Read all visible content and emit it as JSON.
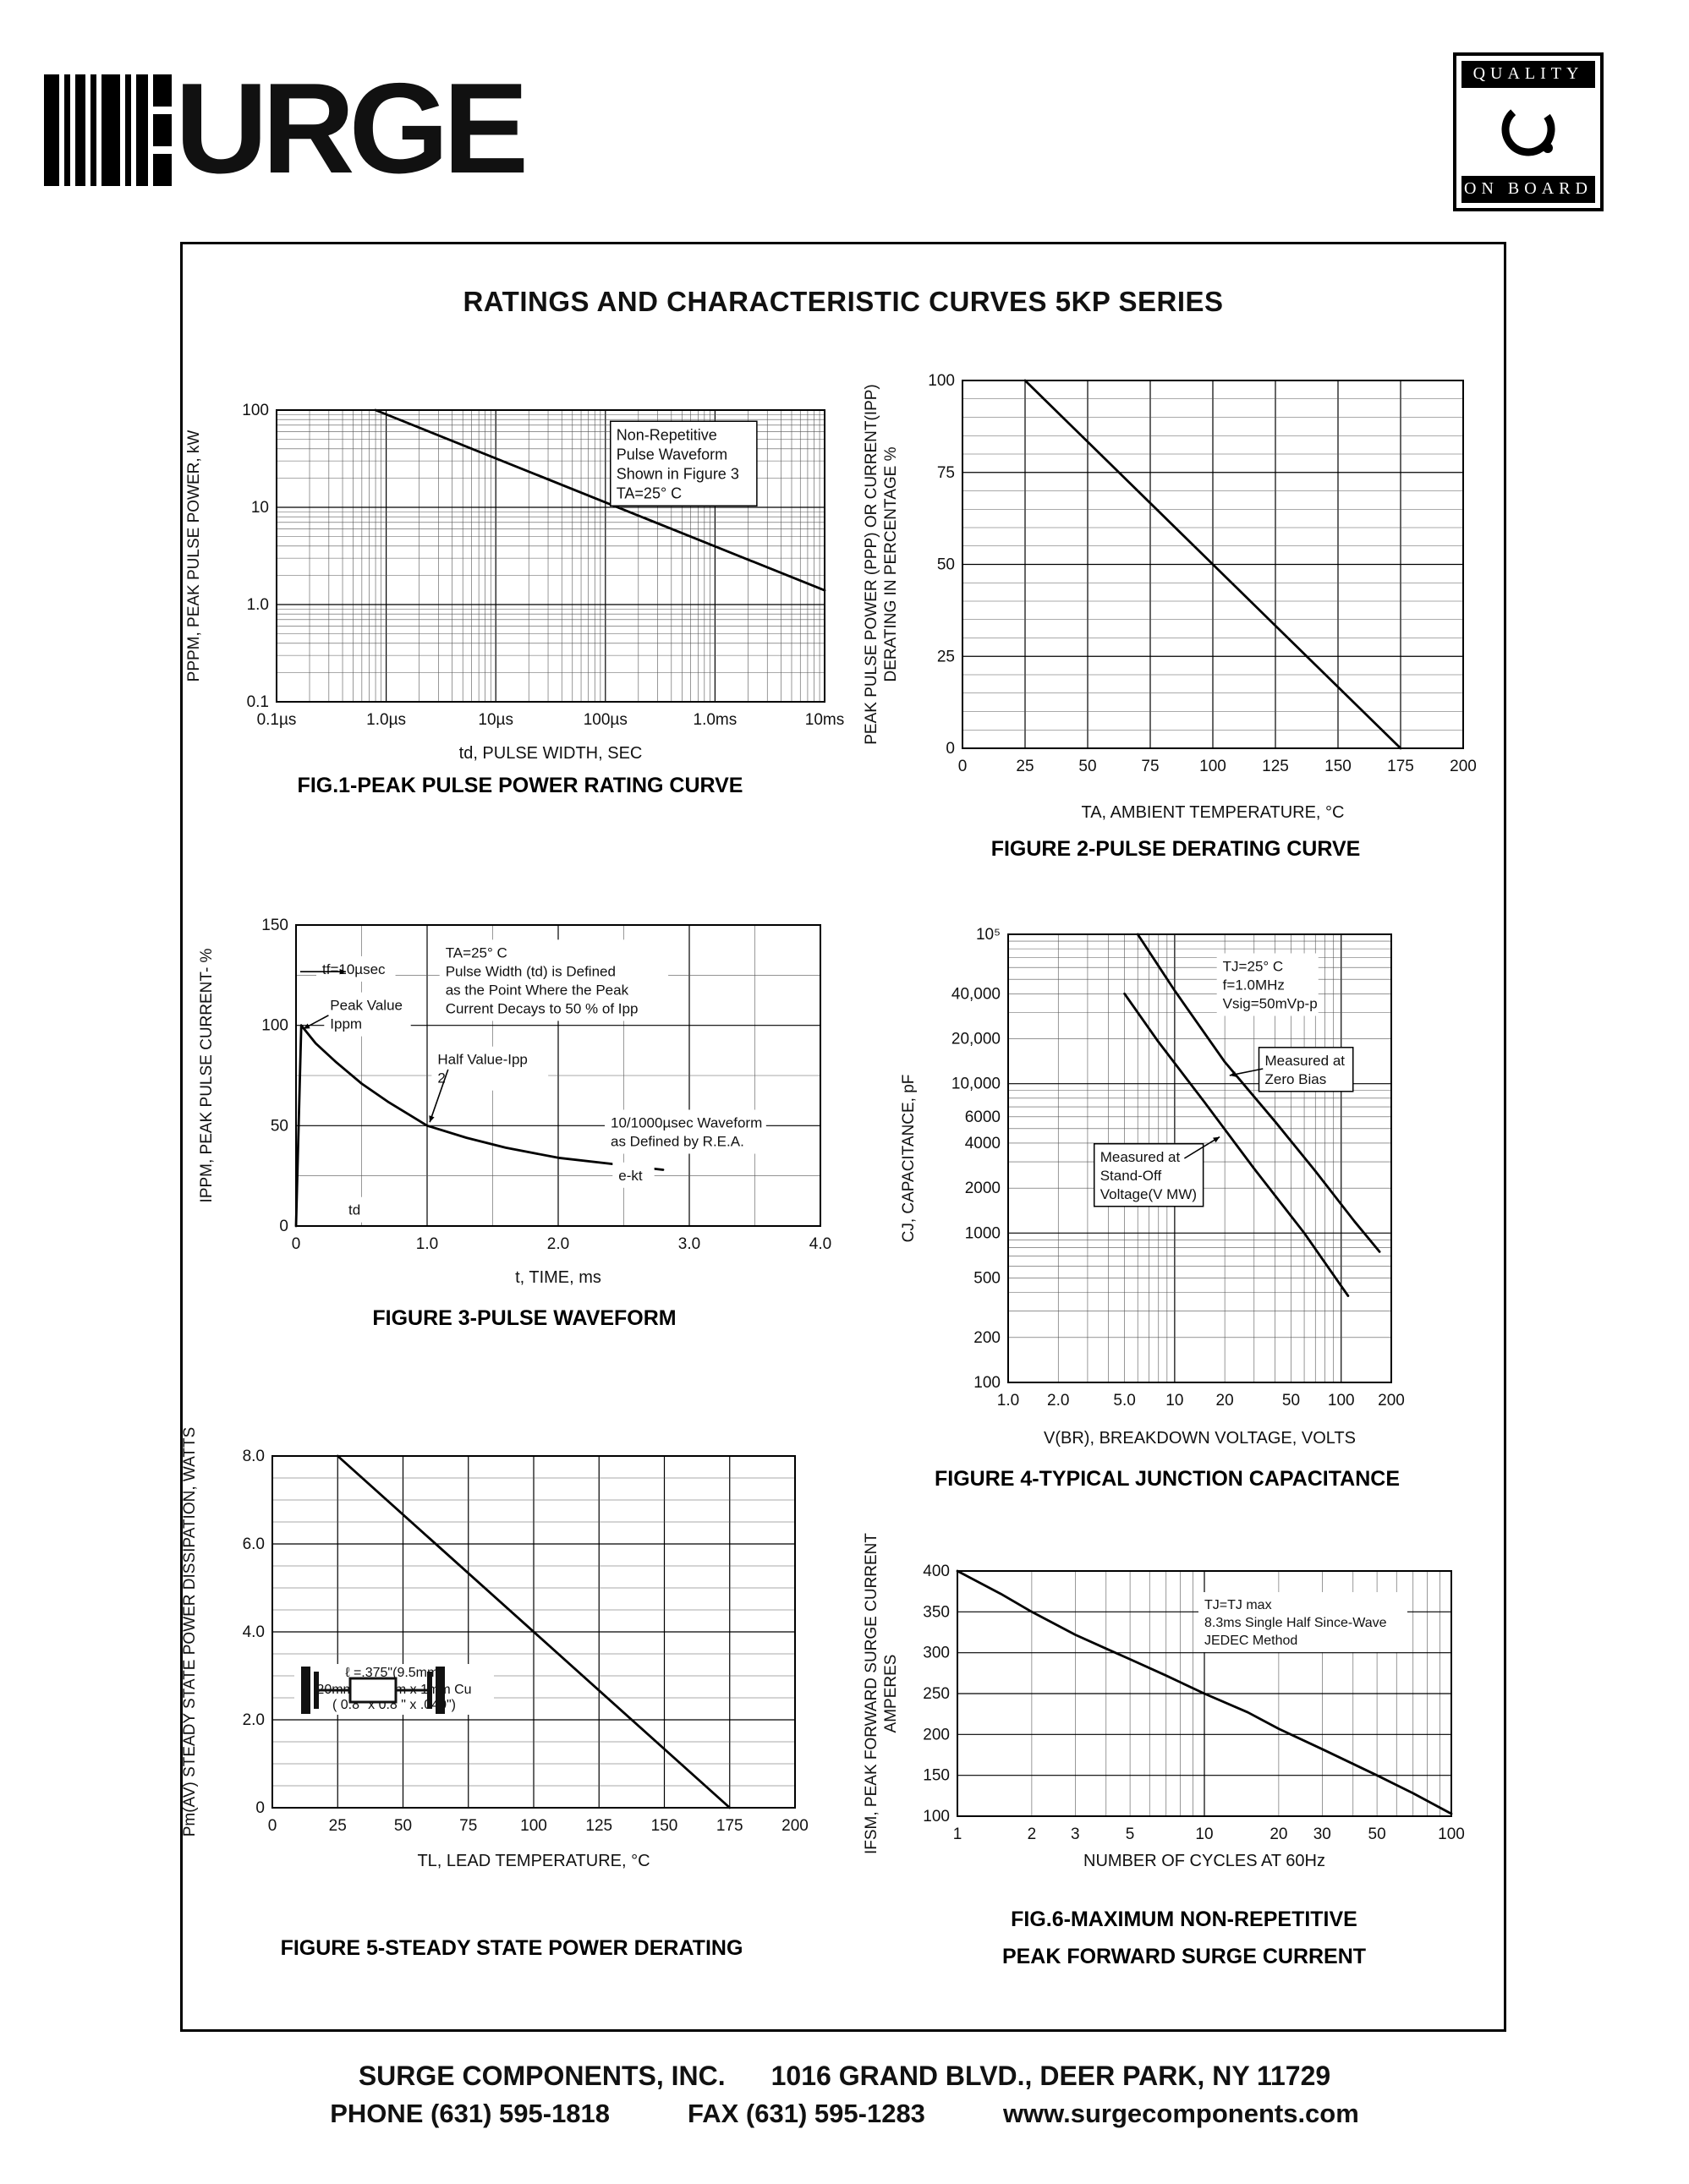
{
  "header": {
    "logo_text": "URGE",
    "badge_top": "QUALITY",
    "badge_bottom": "ON BOARD"
  },
  "panel": {
    "title": "RATINGS AND CHARACTERISTIC CURVES 5KP SERIES"
  },
  "footer": {
    "company": "SURGE COMPONENTS, INC.",
    "address": "1016 GRAND BLVD., DEER PARK, NY  11729",
    "phone": "PHONE (631) 595-1818",
    "fax": "FAX (631) 595-1283",
    "website": "www.surgecomponents.com"
  },
  "chart_data": [
    {
      "id": "fig1",
      "type": "line",
      "caption": "FIG.1-PEAK PULSE POWER RATING CURVE",
      "xlabel": "td, PULSE WIDTH, SEC",
      "ylabel": [
        "PPPM, PEAK PULSE POWER, kW"
      ],
      "margin": {
        "l": 112,
        "r": 40,
        "t": 45,
        "b": 80
      },
      "x": {
        "scale": "log",
        "min": 1e-07,
        "max": 0.01,
        "ticks": [
          {
            "v": 1e-07,
            "label": "0.1µs"
          },
          {
            "v": 1e-06,
            "label": "1.0µs"
          },
          {
            "v": 1e-05,
            "label": "10µs"
          },
          {
            "v": 0.0001,
            "label": "100µs"
          },
          {
            "v": 0.001,
            "label": "1.0ms"
          },
          {
            "v": 0.01,
            "label": "10ms"
          }
        ]
      },
      "y": {
        "scale": "log",
        "min": 0.1,
        "max": 100,
        "ticks": [
          {
            "v": 100,
            "label": "100"
          },
          {
            "v": 10,
            "label": "10"
          },
          {
            "v": 1,
            "label": "1.0"
          },
          {
            "v": 0.1,
            "label": "0.1"
          }
        ]
      },
      "series": [
        {
          "name": "non-repetitive-peak-pulse-power",
          "points": [
            [
              8e-07,
              100
            ],
            [
              0.01,
              1.4
            ]
          ]
        }
      ],
      "annotations": [
        {
          "fx": 0.62,
          "fy": 0.05,
          "fs": 18,
          "boxed": true,
          "lines": [
            "Non-Repetitive",
            "Pulse Waveform",
            "Shown in Figure 3",
            "TA=25° C"
          ]
        }
      ]
    },
    {
      "id": "fig2",
      "type": "line",
      "caption": "FIGURE 2-PULSE DERATING CURVE",
      "xlabel": "TA, AMBIENT  TEMPERATURE, °C",
      "ylabel": [
        "PEAK PULSE POWER (PPP) OR CURRENT(IPP)",
        "DERATING IN PERCENTAGE %"
      ],
      "margin": {
        "l": 118,
        "r": 30,
        "t": 30,
        "b": 95
      },
      "x": {
        "scale": "linear",
        "min": 0,
        "max": 200,
        "minor": 25,
        "ticks": [
          {
            "v": 0,
            "label": "0"
          },
          {
            "v": 25,
            "label": "25"
          },
          {
            "v": 50,
            "label": "50"
          },
          {
            "v": 75,
            "label": "75"
          },
          {
            "v": 100,
            "label": "100"
          },
          {
            "v": 125,
            "label": "125"
          },
          {
            "v": 150,
            "label": "150"
          },
          {
            "v": 175,
            "label": "175"
          },
          {
            "v": 200,
            "label": "200"
          }
        ]
      },
      "y": {
        "scale": "linear",
        "min": 0,
        "max": 100,
        "minor": 5,
        "ticks": [
          {
            "v": 0,
            "label": "0"
          },
          {
            "v": 25,
            "label": "25"
          },
          {
            "v": 50,
            "label": "50"
          },
          {
            "v": 75,
            "label": "75"
          },
          {
            "v": 100,
            "label": "100"
          }
        ]
      },
      "series": [
        {
          "name": "pulse-derating",
          "points": [
            [
              25,
              100
            ],
            [
              175,
              0
            ]
          ]
        }
      ],
      "annotations": []
    },
    {
      "id": "fig3",
      "type": "line",
      "caption": "FIGURE 3-PULSE WAVEFORM",
      "xlabel": "t, TIME, ms",
      "ylabel": [
        "IPPM, PEAK PULSE CURRENT- %"
      ],
      "margin": {
        "l": 120,
        "r": 40,
        "t": 44,
        "b": 80
      },
      "x": {
        "scale": "linear",
        "min": 0,
        "max": 4,
        "minor": 0.5,
        "ticks": [
          {
            "v": 0,
            "label": "0"
          },
          {
            "v": 1,
            "label": "1.0"
          },
          {
            "v": 2,
            "label": "2.0"
          },
          {
            "v": 3,
            "label": "3.0"
          },
          {
            "v": 4,
            "label": "4.0"
          }
        ]
      },
      "y": {
        "scale": "linear",
        "min": 0,
        "max": 150,
        "minor": 25,
        "ticks": [
          {
            "v": 0,
            "label": "0"
          },
          {
            "v": 50,
            "label": "50"
          },
          {
            "v": 100,
            "label": "100"
          },
          {
            "v": 150,
            "label": "150"
          }
        ]
      },
      "series": [
        {
          "name": "pulse-waveform",
          "points": [
            [
              0,
              0
            ],
            [
              0.04,
              100
            ],
            [
              0.15,
              91
            ],
            [
              0.3,
              82
            ],
            [
              0.5,
              71
            ],
            [
              0.7,
              62
            ],
            [
              0.9,
              54
            ],
            [
              1.0,
              50
            ],
            [
              1.3,
              44
            ],
            [
              1.6,
              39
            ],
            [
              2.0,
              34
            ],
            [
              2.4,
              31
            ],
            [
              2.8,
              28
            ]
          ]
        }
      ],
      "annotations": [
        {
          "fx": 0.285,
          "fy": 0.06,
          "fs": 17,
          "lines": [
            "TA=25° C",
            "Pulse Width (td) is Defined",
            "as the Point Where the Peak",
            "Current Decays to 50 % of Ipp"
          ]
        },
        {
          "fx": 0.05,
          "fy": 0.115,
          "fs": 17,
          "lines": [
            "tf=10µsec"
          ]
        },
        {
          "fx": 0.065,
          "fy": 0.235,
          "fs": 17,
          "lines": [
            "Peak Value",
            "Ippm"
          ]
        },
        {
          "fx": 0.27,
          "fy": 0.415,
          "fs": 17,
          "lines": [
            "Half Value-Ipp",
            "        2"
          ]
        },
        {
          "fx": 0.6,
          "fy": 0.625,
          "fs": 17,
          "lines": [
            "10/1000µsec Waveform",
            "as Defined by R.E.A."
          ]
        },
        {
          "fx": 0.615,
          "fy": 0.8,
          "fs": 17,
          "lines": [
            "e-kt"
          ]
        },
        {
          "fx": 0.1,
          "fy": 0.915,
          "fs": 17,
          "lines": [
            "td"
          ]
        }
      ],
      "arrows": [
        [
          0.29,
          0.48,
          0.255,
          0.655
        ],
        [
          0.062,
          0.3,
          0.014,
          0.345
        ],
        [
          0.008,
          0.155,
          0.095,
          0.155
        ]
      ]
    },
    {
      "id": "fig4",
      "type": "line",
      "caption": "FIGURE 4-TYPICAL JUNCTION CAPACITANCE",
      "xlabel": "V(BR), BREAKDOWN VOLTAGE, VOLTS",
      "ylabel": [
        "CJ, CAPACITANCE, pF"
      ],
      "margin": {
        "l": 132,
        "r": 55,
        "t": 45,
        "b": 85
      },
      "x": {
        "scale": "log",
        "min": 1,
        "max": 200,
        "ticks": [
          {
            "v": 1,
            "label": "1.0"
          },
          {
            "v": 2,
            "label": "2.0"
          },
          {
            "v": 5,
            "label": "5.0"
          },
          {
            "v": 10,
            "label": "10"
          },
          {
            "v": 20,
            "label": "20"
          },
          {
            "v": 50,
            "label": "50"
          },
          {
            "v": 100,
            "label": "100"
          },
          {
            "v": 200,
            "label": "200"
          }
        ]
      },
      "y": {
        "scale": "log",
        "min": 100,
        "max": 100000,
        "ticks": [
          {
            "v": 100000,
            "label": "10⁵"
          },
          {
            "v": 40000,
            "label": "40,000"
          },
          {
            "v": 20000,
            "label": "20,000"
          },
          {
            "v": 10000,
            "label": "10,000"
          },
          {
            "v": 6000,
            "label": "6000"
          },
          {
            "v": 4000,
            "label": "4000"
          },
          {
            "v": 2000,
            "label": "2000"
          },
          {
            "v": 1000,
            "label": "1000"
          },
          {
            "v": 500,
            "label": "500"
          },
          {
            "v": 200,
            "label": "200"
          },
          {
            "v": 100,
            "label": "100"
          }
        ]
      },
      "series": [
        {
          "name": "measured-at-zero-bias",
          "points": [
            [
              6,
              100000
            ],
            [
              10,
              42000
            ],
            [
              20,
              14000
            ],
            [
              40,
              5600
            ],
            [
              70,
              2600
            ],
            [
              120,
              1200
            ],
            [
              170,
              750
            ]
          ]
        },
        {
          "name": "measured-at-stand-off-voltage",
          "points": [
            [
              5,
              40000
            ],
            [
              8,
              19000
            ],
            [
              15,
              7600
            ],
            [
              30,
              2700
            ],
            [
              60,
              1000
            ],
            [
              110,
              380
            ]
          ]
        }
      ],
      "annotations": [
        {
          "fx": 0.56,
          "fy": 0.05,
          "fs": 17,
          "lines": [
            "TJ=25° C",
            "f=1.0MHz",
            "Vsig=50mVp-p"
          ]
        },
        {
          "fx": 0.67,
          "fy": 0.26,
          "fs": 17,
          "boxed": true,
          "lines": [
            "Measured at",
            "Zero Bias"
          ]
        },
        {
          "fx": 0.24,
          "fy": 0.475,
          "fs": 17,
          "boxed": true,
          "lines": [
            "Measured at",
            "Stand-Off",
            "Voltage(V MW)"
          ]
        }
      ],
      "arrows": [
        [
          0.665,
          0.3,
          0.578,
          0.315
        ],
        [
          0.46,
          0.5,
          0.552,
          0.452
        ]
      ]
    },
    {
      "id": "fig5",
      "type": "line",
      "caption": "FIGURE 5-STEADY STATE POWER DERATING",
      "xlabel": "TL, LEAD  TEMPERATURE, °C",
      "ylabel": [
        "Pm(AV) STEADY STATE POWER DISSIPATION, WATTS"
      ],
      "margin": {
        "l": 112,
        "r": 60,
        "t": 42,
        "b": 82
      },
      "x": {
        "scale": "linear",
        "min": 0,
        "max": 200,
        "minor": 25,
        "ticks": [
          {
            "v": 0,
            "label": "0"
          },
          {
            "v": 25,
            "label": "25"
          },
          {
            "v": 50,
            "label": "50"
          },
          {
            "v": 75,
            "label": "75"
          },
          {
            "v": 100,
            "label": "100"
          },
          {
            "v": 125,
            "label": "125"
          },
          {
            "v": 150,
            "label": "150"
          },
          {
            "v": 175,
            "label": "175"
          },
          {
            "v": 200,
            "label": "200"
          }
        ]
      },
      "y": {
        "scale": "linear",
        "min": 0,
        "max": 8,
        "minor": 0.5,
        "ticks": [
          {
            "v": 0,
            "label": "0"
          },
          {
            "v": 2,
            "label": "2.0"
          },
          {
            "v": 4,
            "label": "4.0"
          },
          {
            "v": 6,
            "label": "6.0"
          },
          {
            "v": 8,
            "label": "8.0"
          }
        ]
      },
      "series": [
        {
          "name": "steady-state-power-derating",
          "points": [
            [
              25,
              8
            ],
            [
              175,
              0
            ]
          ]
        }
      ],
      "annotations": [],
      "inset": {
        "length_label": "ℓ =.375\"(9.5mm)",
        "cu_label1": "20mm x 20mm x 1mm Cu",
        "cu_label2": "( 0.8\" x  0.8 \" x .040\")"
      }
    },
    {
      "id": "fig6",
      "type": "line",
      "caption": "FIG.6-MAXIMUM NON-REPETITIVE",
      "caption2": "PEAK FORWARD SURGE CURRENT",
      "xlabel": "NUMBER  OF  CYCLES  AT  60Hz",
      "ylabel": [
        "IFSM, PEAK FORWARD SURGE CURRENT",
        "AMPERES"
      ],
      "margin": {
        "l": 112,
        "r": 64,
        "t": 68,
        "b": 72
      },
      "x": {
        "scale": "log",
        "min": 1,
        "max": 100,
        "ticks": [
          {
            "v": 1,
            "label": "1"
          },
          {
            "v": 2,
            "label": "2"
          },
          {
            "v": 3,
            "label": "3"
          },
          {
            "v": 5,
            "label": "5"
          },
          {
            "v": 10,
            "label": "10"
          },
          {
            "v": 20,
            "label": "20"
          },
          {
            "v": 30,
            "label": "30"
          },
          {
            "v": 50,
            "label": "50"
          },
          {
            "v": 100,
            "label": "100"
          }
        ]
      },
      "y": {
        "scale": "linear",
        "min": 100,
        "max": 400,
        "minor": 50,
        "ticks": [
          {
            "v": 100,
            "label": "100"
          },
          {
            "v": 150,
            "label": "150"
          },
          {
            "v": 200,
            "label": "200"
          },
          {
            "v": 250,
            "label": "250"
          },
          {
            "v": 300,
            "label": "300"
          },
          {
            "v": 350,
            "label": "350"
          },
          {
            "v": 400,
            "label": "400"
          }
        ]
      },
      "series": [
        {
          "name": "peak-forward-surge-current",
          "points": [
            [
              1,
              400
            ],
            [
              1.5,
              372
            ],
            [
              2,
              350
            ],
            [
              3,
              322
            ],
            [
              4,
              305
            ],
            [
              5,
              292
            ],
            [
              7,
              272
            ],
            [
              10,
              250
            ],
            [
              15,
              227
            ],
            [
              20,
              207
            ],
            [
              30,
              182
            ],
            [
              50,
              150
            ],
            [
              70,
              128
            ],
            [
              100,
              103
            ]
          ]
        }
      ],
      "annotations": [
        {
          "fx": 0.5,
          "fy": 0.1,
          "fs": 16,
          "lines": [
            "TJ=TJ max",
            "8.3ms Single Half Since-Wave",
            "JEDEC Method"
          ]
        }
      ]
    }
  ]
}
